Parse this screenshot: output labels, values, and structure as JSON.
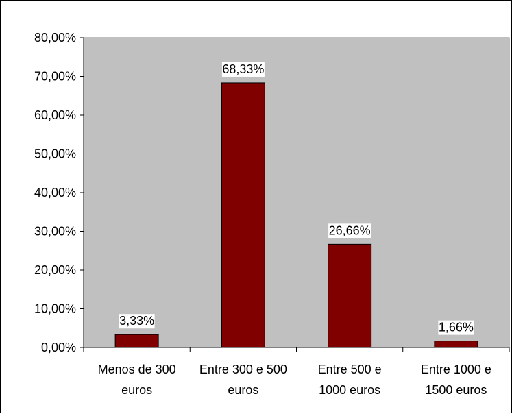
{
  "chart_data": {
    "type": "bar",
    "categories": [
      [
        "Menos de 300",
        "euros"
      ],
      [
        "Entre 300 e 500",
        "euros"
      ],
      [
        "Entre 500 e",
        "1000 euros"
      ],
      [
        "Entre 1000 e",
        "1500 euros"
      ]
    ],
    "values": [
      3.33,
      68.33,
      26.66,
      1.66
    ],
    "data_labels": [
      "3,33%",
      "68,33%",
      "26,66%",
      "1,66%"
    ],
    "y_ticks": [
      "0,00%",
      "10,00%",
      "20,00%",
      "30,00%",
      "40,00%",
      "50,00%",
      "60,00%",
      "70,00%",
      "80,00%"
    ],
    "ylim": [
      0,
      80
    ],
    "grid": false,
    "legend": "none",
    "colors": {
      "bar": "#800000",
      "plot_area": "#c0c0c0",
      "label_bg": "#ffffff"
    }
  }
}
